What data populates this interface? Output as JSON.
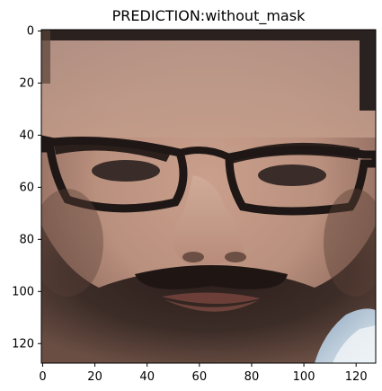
{
  "figure": {
    "title": "PREDICTION:without_mask"
  },
  "image": {
    "description_name": "face-photo",
    "x_range": [
      0,
      128
    ],
    "y_range": [
      0,
      128
    ],
    "x_ticks": [
      0,
      20,
      40,
      60,
      80,
      100,
      120
    ],
    "y_ticks": [
      0,
      20,
      40,
      60,
      80,
      100,
      120
    ]
  }
}
